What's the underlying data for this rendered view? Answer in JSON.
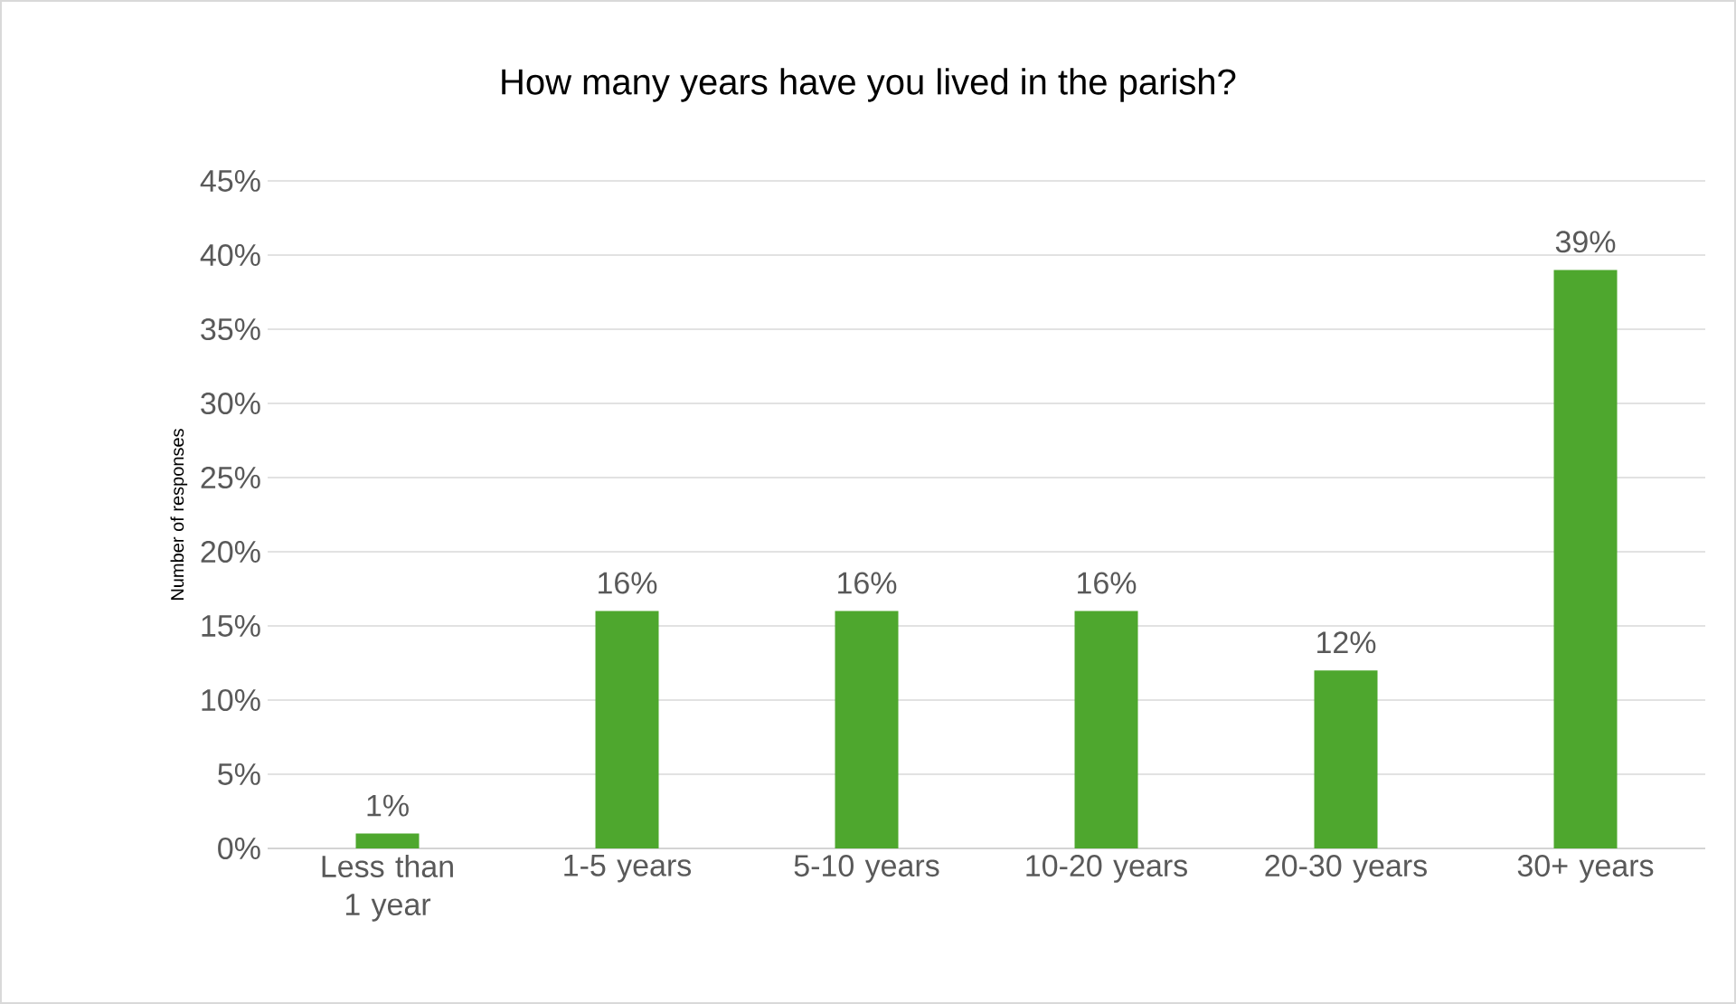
{
  "chart_data": {
    "type": "bar",
    "title": "How many years have you lived in the parish?",
    "ylabel": "Number of responses",
    "categories": [
      "Less than 1 year",
      "1-5 years",
      "5-10 years",
      "10-20 years",
      "20-30 years",
      "30+ years"
    ],
    "values": [
      1,
      16,
      16,
      16,
      12,
      39
    ],
    "value_labels": [
      "1%",
      "16%",
      "16%",
      "16%",
      "12%",
      "39%"
    ],
    "color": "#4ea72e",
    "ylim": [
      0,
      45
    ],
    "yticks": [
      {
        "value": 0,
        "label": "0%"
      },
      {
        "value": 5,
        "label": "5%"
      },
      {
        "value": 10,
        "label": "10%"
      },
      {
        "value": 15,
        "label": "15%"
      },
      {
        "value": 20,
        "label": "20%"
      },
      {
        "value": 25,
        "label": "25%"
      },
      {
        "value": 30,
        "label": "30%"
      },
      {
        "value": 35,
        "label": "35%"
      },
      {
        "value": 40,
        "label": "40%"
      },
      {
        "value": 45,
        "label": "45%"
      }
    ],
    "grid": "y"
  }
}
